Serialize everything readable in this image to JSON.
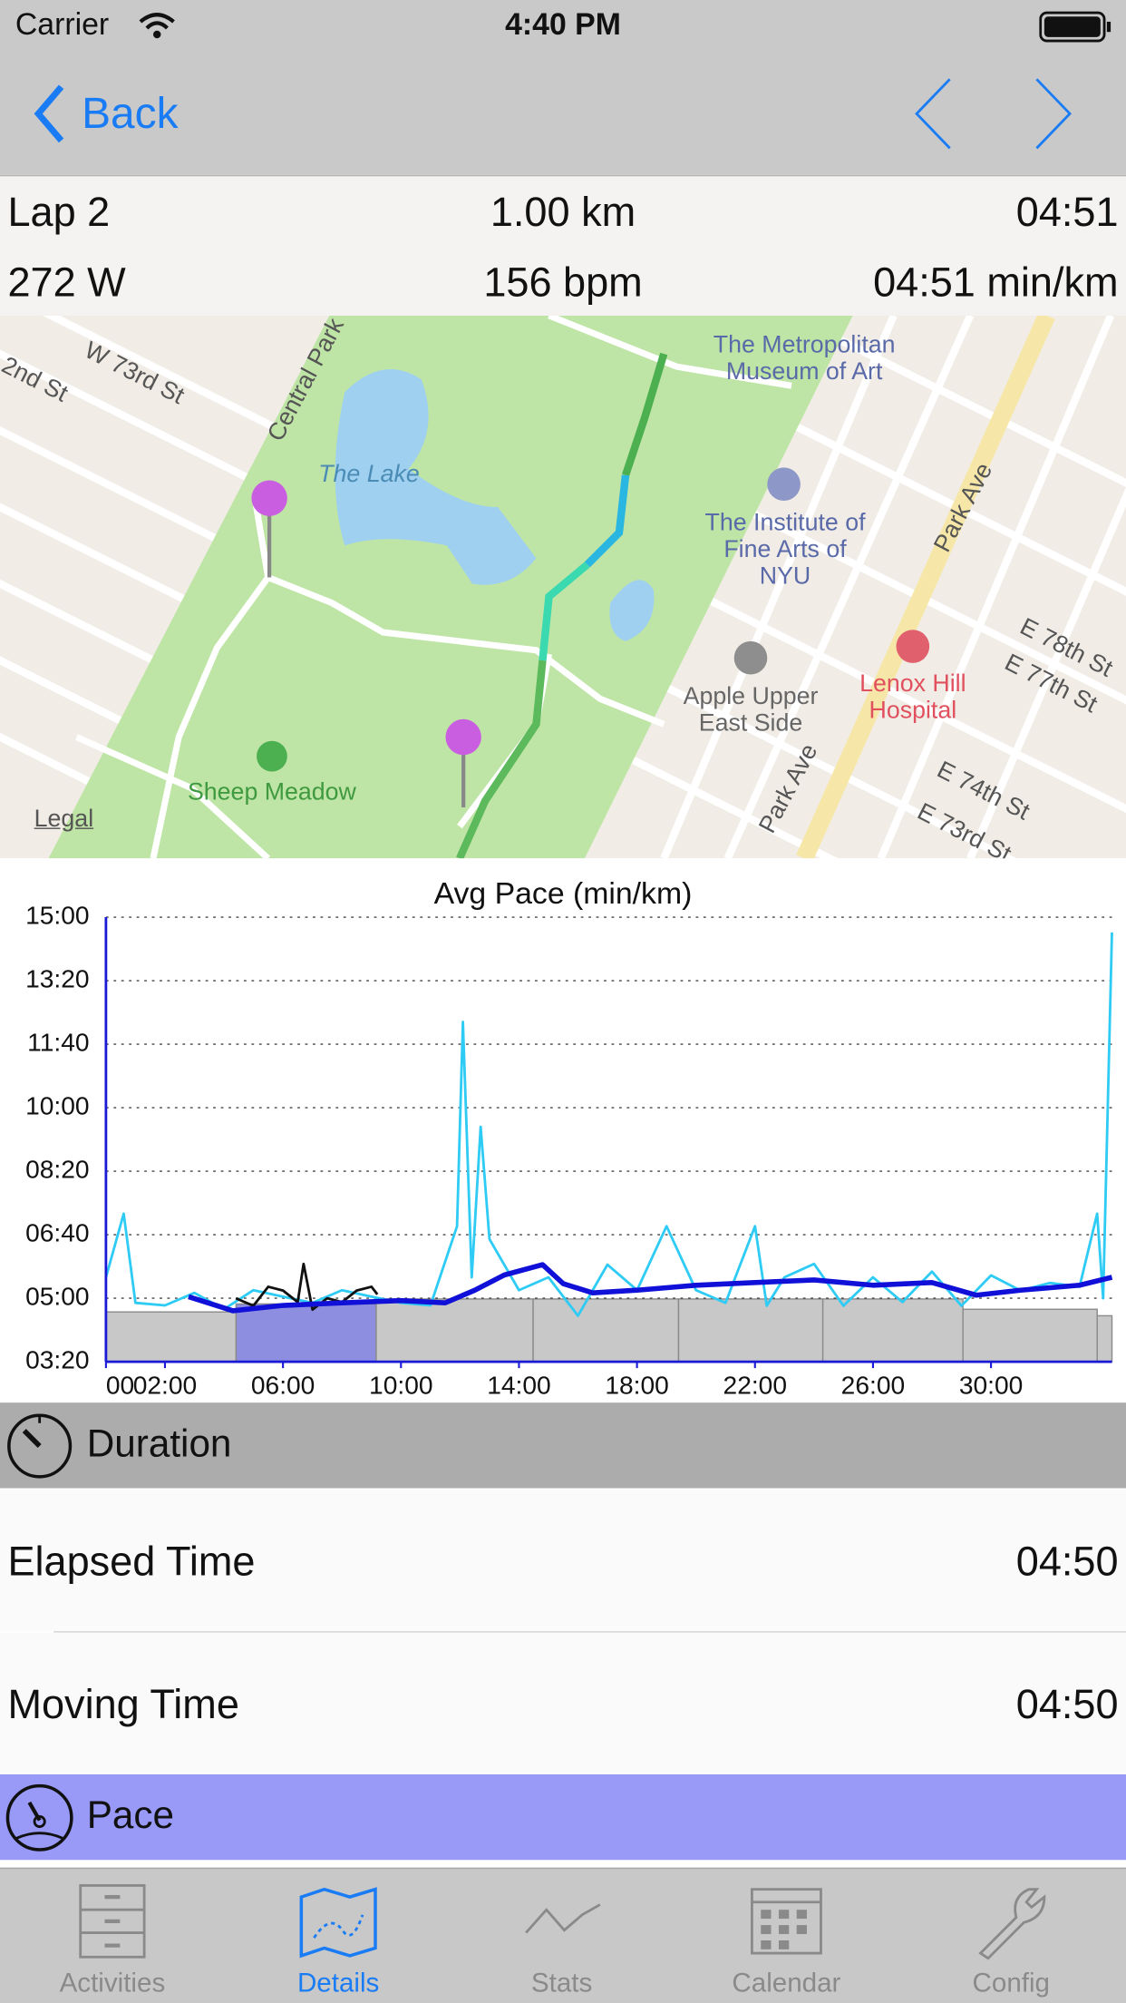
{
  "status_bar": {
    "carrier": "Carrier",
    "time": "4:40 PM"
  },
  "nav": {
    "back": "Back"
  },
  "lap_summary": {
    "lap": "Lap 2",
    "distance": "1.00 km",
    "time": "04:51",
    "power": "272 W",
    "heart_rate": "156 bpm",
    "pace": "04:51 min/km"
  },
  "map": {
    "labels": [
      "The Lake",
      "The Metropolitan Museum of Art",
      "The Institute of Fine Arts of NYU",
      "Apple Upper East Side",
      "Lenox Hill Hospital",
      "Sheep Meadow",
      "Park Ave",
      "Park Ave",
      "Central Park",
      "W 73rd St",
      "2nd St",
      "E 78th St",
      "E 77th St",
      "E 74th St",
      "E 73rd St",
      "Legal"
    ]
  },
  "chart_data": {
    "type": "line",
    "title": "Avg Pace (min/km)",
    "xlim": [
      0,
      34.1
    ],
    "ylim": [
      3.333,
      15
    ],
    "grid": true,
    "axis_color": "#1a1ad6",
    "yticks": [
      {
        "value": 15,
        "label": "15:00"
      },
      {
        "value": 13.333,
        "label": "13:20"
      },
      {
        "value": 11.667,
        "label": "11:40"
      },
      {
        "value": 10,
        "label": "10:00"
      },
      {
        "value": 8.333,
        "label": "08:20"
      },
      {
        "value": 6.667,
        "label": "06:40"
      },
      {
        "value": 5,
        "label": "05:00"
      },
      {
        "value": 3.333,
        "label": "03:20"
      }
    ],
    "xticks": [
      {
        "value": 0,
        "label": "00"
      },
      {
        "value": 2,
        "label": "02:00"
      },
      {
        "value": 6,
        "label": "06:00"
      },
      {
        "value": 10,
        "label": "10:00"
      },
      {
        "value": 14,
        "label": "14:00"
      },
      {
        "value": 18,
        "label": "18:00"
      },
      {
        "value": 22,
        "label": "22:00"
      },
      {
        "value": 26,
        "label": "26:00"
      },
      {
        "value": 30,
        "label": "30:00"
      }
    ],
    "laps": {
      "bins": [
        0,
        4.41,
        9.16,
        14.48,
        19.41,
        24.3,
        29.05,
        33.6,
        34.1
      ],
      "values": [
        4.64,
        4.85,
        4.98,
        4.98,
        4.98,
        4.98,
        4.71,
        4.54
      ],
      "color": "#c8c8c8",
      "highlight": 1,
      "highlight_color": "#8e8ee0"
    },
    "series": [
      {
        "color": "#2ecbf5",
        "x": [
          0,
          0.6,
          1,
          2,
          3,
          4,
          5,
          6,
          7,
          8,
          9,
          10,
          11,
          11.9,
          12.1,
          12.4,
          12.7,
          13,
          14,
          15,
          16,
          17,
          18,
          19,
          20,
          21,
          22,
          22.4,
          23,
          24,
          25,
          26,
          27,
          28,
          29,
          30,
          31,
          32,
          33,
          33.6,
          33.8,
          34.1
        ],
        "values": [
          5.55,
          7.22,
          4.88,
          4.81,
          5.14,
          4.71,
          5.21,
          5.04,
          4.88,
          5.21,
          5.04,
          4.88,
          4.81,
          6.89,
          12.25,
          5.55,
          9.5,
          6.55,
          5.21,
          5.55,
          4.54,
          5.88,
          5.21,
          6.89,
          5.21,
          4.88,
          6.89,
          4.8,
          5.55,
          5.9,
          4.8,
          5.55,
          4.9,
          5.7,
          4.8,
          5.6,
          5.2,
          5.4,
          5.3,
          7.22,
          5.0,
          14.6
        ]
      },
      {
        "color": "#111111",
        "x": [
          4.4,
          5,
          5.5,
          6,
          6.5,
          6.7,
          7,
          7.5,
          8,
          8.5,
          9,
          9.2
        ],
        "values": [
          5.0,
          4.8,
          5.3,
          5.2,
          4.9,
          5.9,
          4.7,
          5.0,
          4.9,
          5.2,
          5.3,
          5.1
        ]
      },
      {
        "color": "#1010d8",
        "x": [
          2.8,
          4.3,
          6,
          8,
          10,
          11.5,
          12.5,
          13.5,
          14.8,
          15.5,
          16.5,
          18,
          20,
          22,
          24,
          26,
          28,
          29.5,
          31,
          33,
          34.1
        ],
        "values": [
          5.04,
          4.67,
          4.81,
          4.88,
          4.94,
          4.88,
          5.21,
          5.61,
          5.88,
          5.38,
          5.14,
          5.21,
          5.34,
          5.41,
          5.48,
          5.34,
          5.41,
          5.08,
          5.21,
          5.34,
          5.55
        ]
      }
    ]
  },
  "sections": [
    {
      "title": "Duration",
      "rows": [
        {
          "label": "Elapsed Time",
          "value": "04:50"
        },
        {
          "label": "Moving Time",
          "value": "04:50"
        }
      ]
    },
    {
      "title": "Pace"
    }
  ],
  "tabs": [
    "Activities",
    "Details",
    "Stats",
    "Calendar",
    "Config"
  ]
}
